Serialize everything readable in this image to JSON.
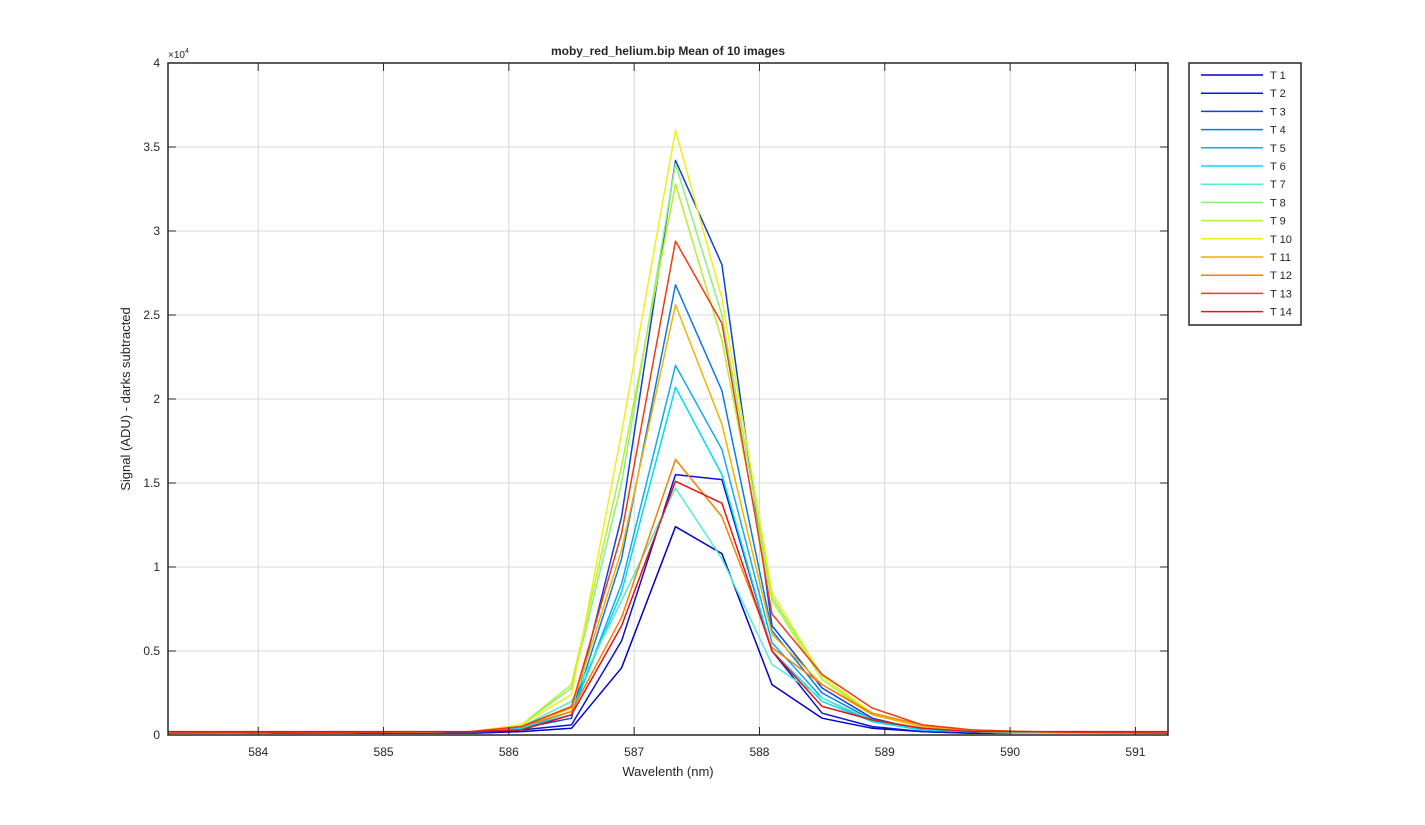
{
  "chart_data": {
    "type": "line",
    "title": "moby_red_helium.bip  Mean of 10 images",
    "xlabel": "Wavelenth (nm)",
    "ylabel": "Signal (ADU) - darks subtracted",
    "y_exponent_label": "×10",
    "y_exponent_power": "4",
    "xlim": [
      583.28,
      591.26
    ],
    "ylim": [
      0,
      4
    ],
    "xticks": [
      "584",
      "585",
      "586",
      "587",
      "588",
      "589",
      "590",
      "591"
    ],
    "yticks": [
      "0",
      "0.5",
      "1",
      "1.5",
      "2",
      "2.5",
      "3",
      "3.5",
      "4"
    ],
    "grid": true,
    "legend_position": "outside-top-right",
    "x": [
      583.28,
      585.7,
      586.1,
      586.5,
      586.9,
      587.33,
      587.7,
      588.1,
      588.5,
      588.9,
      589.3,
      589.7,
      590.1,
      591.26
    ],
    "series": [
      {
        "name": "T 1",
        "color": "#0000c8",
        "values": [
          0.01,
          0.01,
          0.02,
          0.04,
          0.4,
          1.24,
          1.08,
          0.3,
          0.1,
          0.04,
          0.02,
          0.01,
          0.01,
          0.01
        ]
      },
      {
        "name": "T 2",
        "color": "#0a14d2",
        "values": [
          0.01,
          0.01,
          0.03,
          0.06,
          0.56,
          1.55,
          1.52,
          0.5,
          0.13,
          0.05,
          0.02,
          0.01,
          0.01,
          0.01
        ]
      },
      {
        "name": "T 3",
        "color": "#0f41dc",
        "values": [
          0.01,
          0.01,
          0.04,
          0.1,
          1.3,
          3.42,
          2.8,
          0.65,
          0.28,
          0.1,
          0.03,
          0.02,
          0.01,
          0.01
        ]
      },
      {
        "name": "T 4",
        "color": "#0f78e6",
        "values": [
          0.01,
          0.02,
          0.04,
          0.12,
          1.05,
          2.68,
          2.05,
          0.62,
          0.25,
          0.09,
          0.03,
          0.02,
          0.01,
          0.01
        ]
      },
      {
        "name": "T 5",
        "color": "#14aaf0",
        "values": [
          0.01,
          0.02,
          0.04,
          0.12,
          0.9,
          2.2,
          1.7,
          0.55,
          0.22,
          0.08,
          0.03,
          0.02,
          0.01,
          0.01
        ]
      },
      {
        "name": "T 6",
        "color": "#00dcf0",
        "values": [
          0.01,
          0.02,
          0.04,
          0.14,
          0.85,
          2.07,
          1.55,
          0.5,
          0.2,
          0.08,
          0.03,
          0.02,
          0.01,
          0.01
        ]
      },
      {
        "name": "T 7",
        "color": "#50f0c8",
        "values": [
          0.01,
          0.02,
          0.05,
          0.2,
          0.8,
          1.47,
          1.05,
          0.42,
          0.22,
          0.09,
          0.04,
          0.02,
          0.01,
          0.01
        ]
      },
      {
        "name": "T 8",
        "color": "#8cf07a",
        "values": [
          0.01,
          0.02,
          0.06,
          0.28,
          1.5,
          3.4,
          2.5,
          0.82,
          0.35,
          0.12,
          0.05,
          0.03,
          0.02,
          0.01
        ]
      },
      {
        "name": "T 9",
        "color": "#b4f032",
        "values": [
          0.01,
          0.02,
          0.06,
          0.3,
          1.6,
          3.28,
          2.35,
          0.8,
          0.33,
          0.12,
          0.05,
          0.03,
          0.02,
          0.01
        ]
      },
      {
        "name": "T 10",
        "color": "#f0f014",
        "values": [
          0.01,
          0.02,
          0.06,
          0.24,
          1.8,
          3.6,
          2.6,
          0.85,
          0.35,
          0.13,
          0.05,
          0.03,
          0.02,
          0.01
        ]
      },
      {
        "name": "T 11",
        "color": "#f0b400",
        "values": [
          0.01,
          0.02,
          0.05,
          0.16,
          1.1,
          2.56,
          1.85,
          0.6,
          0.3,
          0.12,
          0.05,
          0.03,
          0.02,
          0.01
        ]
      },
      {
        "name": "T 12",
        "color": "#f0820a",
        "values": [
          0.01,
          0.02,
          0.05,
          0.14,
          0.7,
          1.64,
          1.3,
          0.52,
          0.3,
          0.13,
          0.06,
          0.03,
          0.02,
          0.01
        ]
      },
      {
        "name": "T 13",
        "color": "#f03c14",
        "values": [
          0.01,
          0.02,
          0.05,
          0.17,
          1.2,
          2.94,
          2.45,
          0.72,
          0.36,
          0.16,
          0.06,
          0.03,
          0.02,
          0.01
        ]
      },
      {
        "name": "T 14",
        "color": "#e61414",
        "values": [
          0.02,
          0.02,
          0.03,
          0.12,
          0.65,
          1.51,
          1.38,
          0.5,
          0.17,
          0.09,
          0.04,
          0.02,
          0.02,
          0.02
        ]
      }
    ]
  }
}
